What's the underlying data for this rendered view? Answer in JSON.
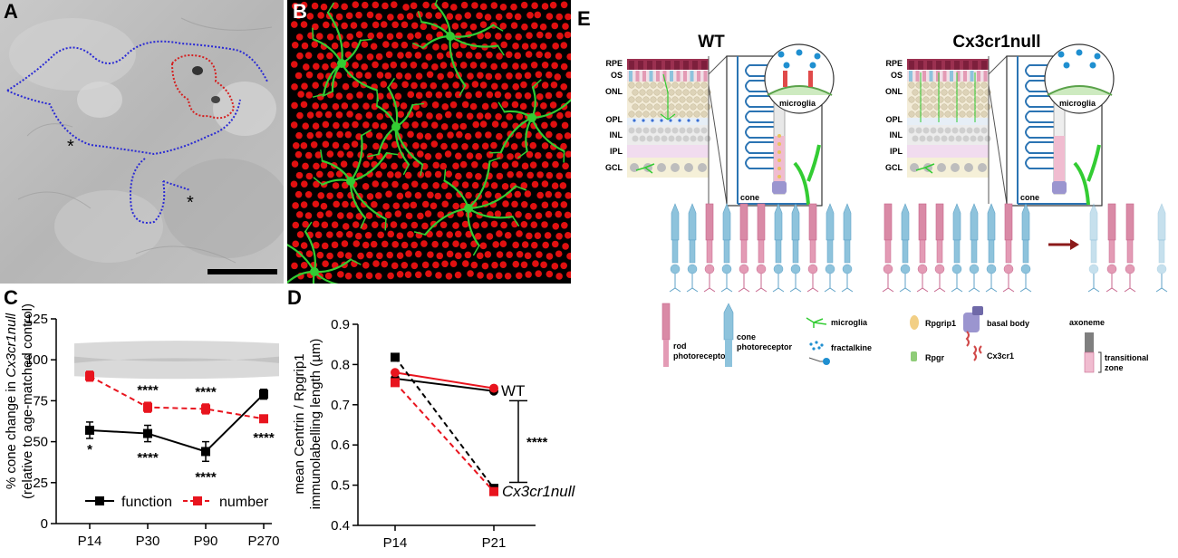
{
  "figure": {
    "panel_labels": [
      "A",
      "B",
      "C",
      "D",
      "E"
    ],
    "panel_a": {
      "asterisk_1": "*",
      "asterisk_2": "*"
    }
  },
  "colors": {
    "black_series": "#000000",
    "red_series": "#e8141e",
    "em_background": "#bdbdbd",
    "microglia_green": "#33cc33",
    "nuclei_red": "#e01010",
    "rod_pink": "#e39bb5",
    "cone_blue": "#8ec3dc",
    "rpe_maroon": "#9b3050"
  },
  "chart_data": [
    {
      "panel": "C",
      "type": "line",
      "categories": [
        "P14",
        "P30",
        "P90",
        "P270"
      ],
      "ylabel": "% cone change in Cx3cr1null (relative to age-matched control)",
      "ylabel_line1_prefix": "% cone change in ",
      "ylabel_line1_italic": "Cx3cr1null",
      "ylabel_line2": "(relative to age-matched control)",
      "xlabel": "",
      "ylim": [
        0,
        125
      ],
      "yticks": [
        0,
        25,
        50,
        75,
        100,
        125
      ],
      "control_band": {
        "low": 90,
        "high": 110
      },
      "series": [
        {
          "name": "function",
          "values": [
            57,
            55,
            44,
            79
          ],
          "errors": [
            5,
            5,
            6,
            3
          ],
          "color": "#000000",
          "dashed": false
        },
        {
          "name": "number",
          "values": [
            90,
            71,
            70,
            64
          ],
          "errors": [
            3,
            3,
            3,
            2
          ],
          "color": "#e8141e",
          "dashed": true
        }
      ],
      "annotations": [
        {
          "x": "P14",
          "y": 46,
          "text": "*"
        },
        {
          "x": "P30",
          "y": 82,
          "text": "****"
        },
        {
          "x": "P30",
          "y": 41,
          "text": "****"
        },
        {
          "x": "P90",
          "y": 81,
          "text": "****"
        },
        {
          "x": "P90",
          "y": 29,
          "text": "****"
        },
        {
          "x": "P270",
          "y": 53,
          "text": "****"
        }
      ]
    },
    {
      "panel": "D",
      "type": "line",
      "categories": [
        "P14",
        "P21"
      ],
      "ylabel": "mean Centrin / Rpgrip1 immunolabelling length (µm)",
      "ylabel_line1": "mean Centrin / Rpgrip1",
      "ylabel_line2": "immunolabelling length (µm)",
      "xlabel": "",
      "ylim": [
        0.4,
        0.9
      ],
      "yticks": [
        0.4,
        0.5,
        0.6,
        0.7,
        0.8,
        0.9
      ],
      "series": [
        {
          "values": [
            0.765,
            0.734
          ],
          "color": "#000000",
          "dashed": false
        },
        {
          "values": [
            0.78,
            0.741
          ],
          "color": "#e8141e",
          "dashed": false
        },
        {
          "values": [
            0.818,
            0.492
          ],
          "color": "#000000",
          "dashed": true
        },
        {
          "values": [
            0.755,
            0.484
          ],
          "color": "#e8141e",
          "dashed": true
        }
      ],
      "labels": {
        "wt": "WT",
        "null": "Cx3cr1null"
      },
      "significance": "****"
    }
  ],
  "schematic": {
    "titles": {
      "wt": "WT",
      "null": "Cx3cr1null"
    },
    "layers": [
      "RPE",
      "OS",
      "ONL",
      "OPL",
      "INL",
      "IPL",
      "GCL"
    ],
    "zoom_labels": {
      "cone": "cone",
      "microglia": "microglia"
    },
    "legend": {
      "rod": "rod\nphotoreceptor",
      "cone": "cone\nphotoreceptor",
      "microglia": "microglia",
      "fractalkine": "fractalkine",
      "rpgrip1": "Rpgrip1",
      "rpgr": "Rpgr",
      "basal_body": "basal body",
      "cx3cr1": "Cx3cr1",
      "axoneme": "axoneme",
      "transitional_zone": "transitional\nzone"
    }
  }
}
